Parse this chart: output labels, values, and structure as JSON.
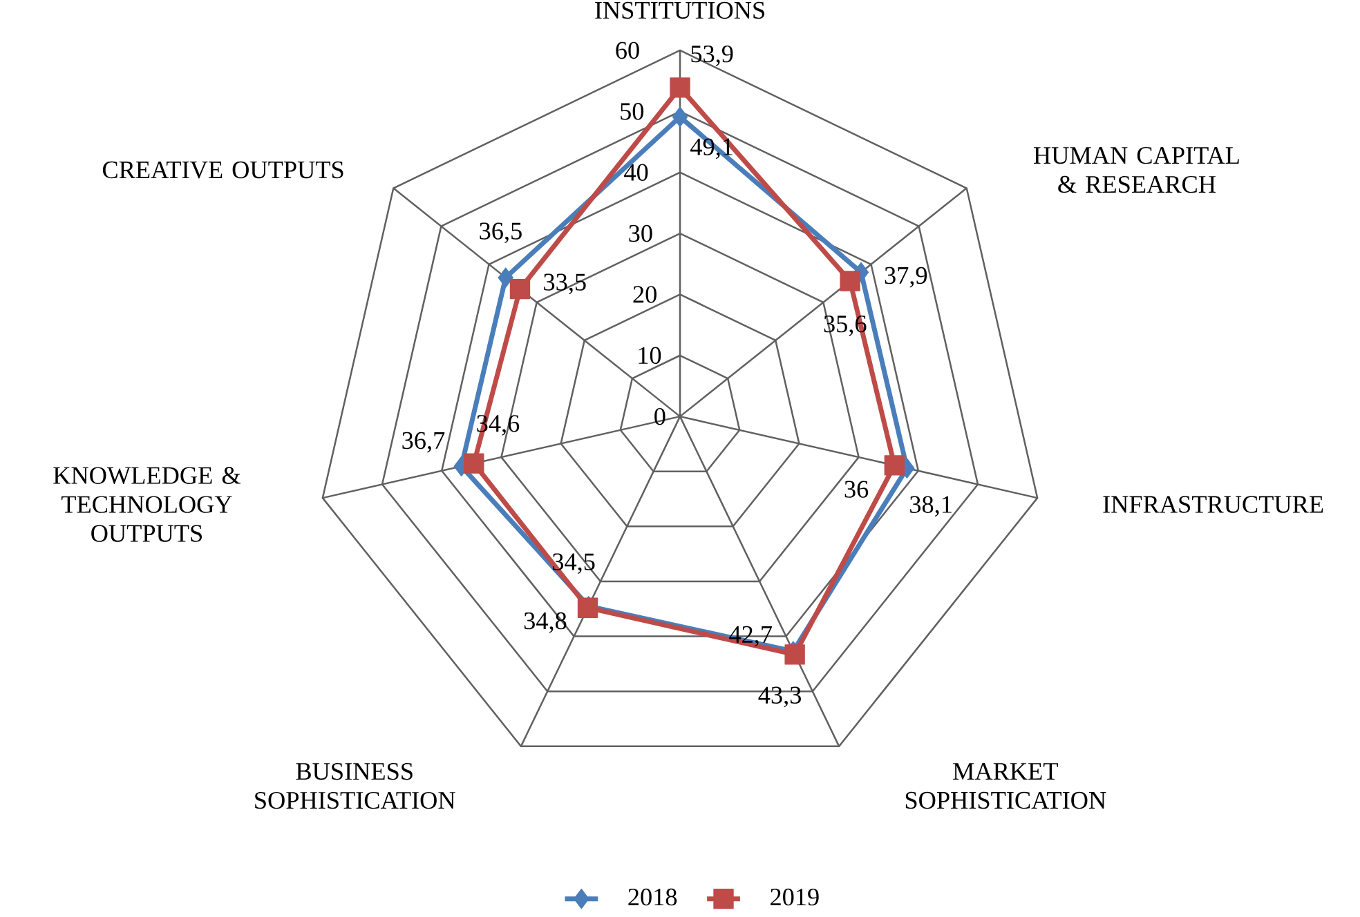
{
  "chart_data": {
    "type": "radar",
    "categories": [
      "INSTITUTIONS",
      "HUMAN CAPITAL & RESEARCH",
      "INFRASTRUCTURE",
      "MARKET SOPHISTICATION",
      "BUSINESS SOPHISTICATION",
      "KNOWLEDGE & TECHNOLOGY OUTPUTS",
      "CREATIVE OUTPUTS"
    ],
    "ylim": [
      0,
      60
    ],
    "yticks": [
      0,
      10,
      20,
      30,
      40,
      50,
      60
    ],
    "grid": true,
    "legend": "bottom",
    "series": [
      {
        "name": "2018",
        "color": "#4a7ebb",
        "marker": "diamond",
        "values": [
          49.1,
          37.9,
          38.1,
          42.7,
          34.5,
          36.7,
          36.5
        ],
        "value_labels": [
          "49,1",
          "37,9",
          "38,1",
          "42,7",
          "34,5",
          "36,7",
          "36,5"
        ]
      },
      {
        "name": "2019",
        "color": "#be4b48",
        "marker": "square",
        "values": [
          53.9,
          35.6,
          36,
          43.3,
          34.8,
          34.6,
          33.5
        ],
        "value_labels": [
          "53,9",
          "35,6",
          "36",
          "43,3",
          "34,8",
          "34,6",
          "33,5"
        ]
      }
    ]
  }
}
